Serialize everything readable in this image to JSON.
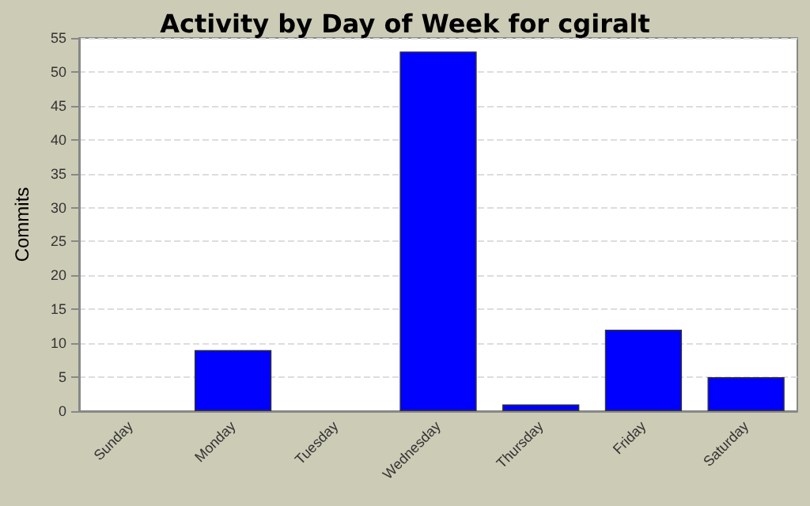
{
  "chart_data": {
    "type": "bar",
    "title": "Activity by Day of Week for cgiralt",
    "ylabel": "Commits",
    "categories": [
      "Sunday",
      "Monday",
      "Tuesday",
      "Wednesday",
      "Thursday",
      "Friday",
      "Saturday"
    ],
    "values": [
      0,
      9,
      0,
      53,
      1,
      12,
      5
    ],
    "color": "#0000ff",
    "ylim": [
      0,
      55
    ],
    "yticks": [
      0,
      5,
      10,
      15,
      20,
      25,
      30,
      35,
      40,
      45,
      50,
      55
    ],
    "grid": "y"
  }
}
